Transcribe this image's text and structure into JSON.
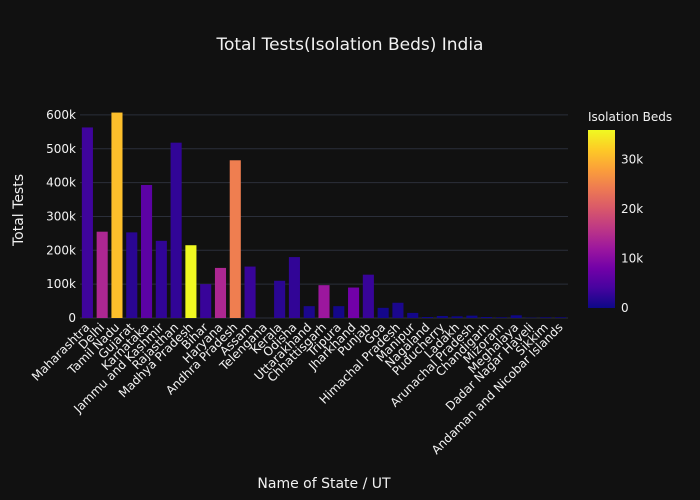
{
  "chart_data": {
    "type": "bar",
    "title": "Total Tests(Isolation Beds) India",
    "xlabel": "Name of State / UT",
    "ylabel": "Total Tests",
    "ylim": [
      0,
      650000
    ],
    "yticks": [
      0,
      100000,
      200000,
      300000,
      400000,
      500000,
      600000
    ],
    "ytick_labels": [
      "0",
      "100k",
      "200k",
      "300k",
      "400k",
      "500k",
      "600k"
    ],
    "colorbar": {
      "title": "Isolation Beds",
      "range": [
        0,
        36000
      ],
      "ticks": [
        0,
        10000,
        20000,
        30000
      ],
      "tick_labels": [
        "0",
        "10k",
        "20k",
        "30k"
      ],
      "colorscale": [
        "#0d0887",
        "#46039f",
        "#7201a8",
        "#9c179e",
        "#bd3786",
        "#d8576b",
        "#ed7953",
        "#fb9f3a",
        "#fdca26",
        "#f0f921"
      ]
    },
    "grid": true,
    "categories": [
      "Maharashtra",
      "Delhi",
      "Tamil Nadu",
      "Gujarat",
      "Karnataka",
      "Jammu and Kashmir",
      "Rajasthan",
      "Madhya Pradesh",
      "Bihar",
      "Haryana",
      "Andhra Pradesh",
      "Assam",
      "Telengana",
      "Kerala",
      "Odisha",
      "Uttarakhand",
      "Chhattisgarh",
      "Tripura",
      "Jharkhand",
      "Punjab",
      "Goa",
      "Himachal Pradesh",
      "Manipur",
      "Nagaland",
      "Puducherry",
      "Ladakh",
      "Arunachal Pradesh",
      "Chandigarh",
      "Mizoram",
      "Meghalaya",
      "Dadar Nagar Haveli",
      "Sikkim",
      "Andaman and Nicobar Islands"
    ],
    "values": [
      563000,
      255000,
      607000,
      253000,
      393000,
      228000,
      518000,
      215000,
      100000,
      148000,
      466000,
      152000,
      0,
      110000,
      180000,
      35000,
      97000,
      35000,
      90000,
      128000,
      30000,
      45000,
      15000,
      3000,
      6000,
      5000,
      7000,
      3000,
      2000,
      8000,
      1000,
      2000,
      2000
    ],
    "color_values": [
      3500,
      14000,
      31000,
      2000,
      6000,
      2500,
      2500,
      36000,
      3000,
      14000,
      24500,
      3000,
      0,
      2000,
      2500,
      1000,
      12000,
      500,
      8000,
      3000,
      500,
      1000,
      500,
      200,
      200,
      200,
      200,
      200,
      200,
      200,
      200,
      200,
      200
    ]
  }
}
